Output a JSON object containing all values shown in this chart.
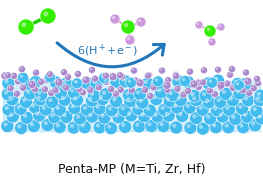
{
  "bg_color": "#ffffff",
  "title_text": "Penta-MP (M=Ti, Zr, Hf)",
  "title_fontsize": 9,
  "arrow_text": "6(H$^+$+e$^-$)",
  "arrow_color": "#2277bb",
  "n2_color": "#33ee00",
  "n2_bond_color": "#22cc00",
  "nh_color": "#cc99dd",
  "nh_bond_color": "#ccaad0",
  "metal_color": "#44bbee",
  "phos_color": "#aa88cc",
  "metal_r": 6.5,
  "phos_r": 3.5
}
